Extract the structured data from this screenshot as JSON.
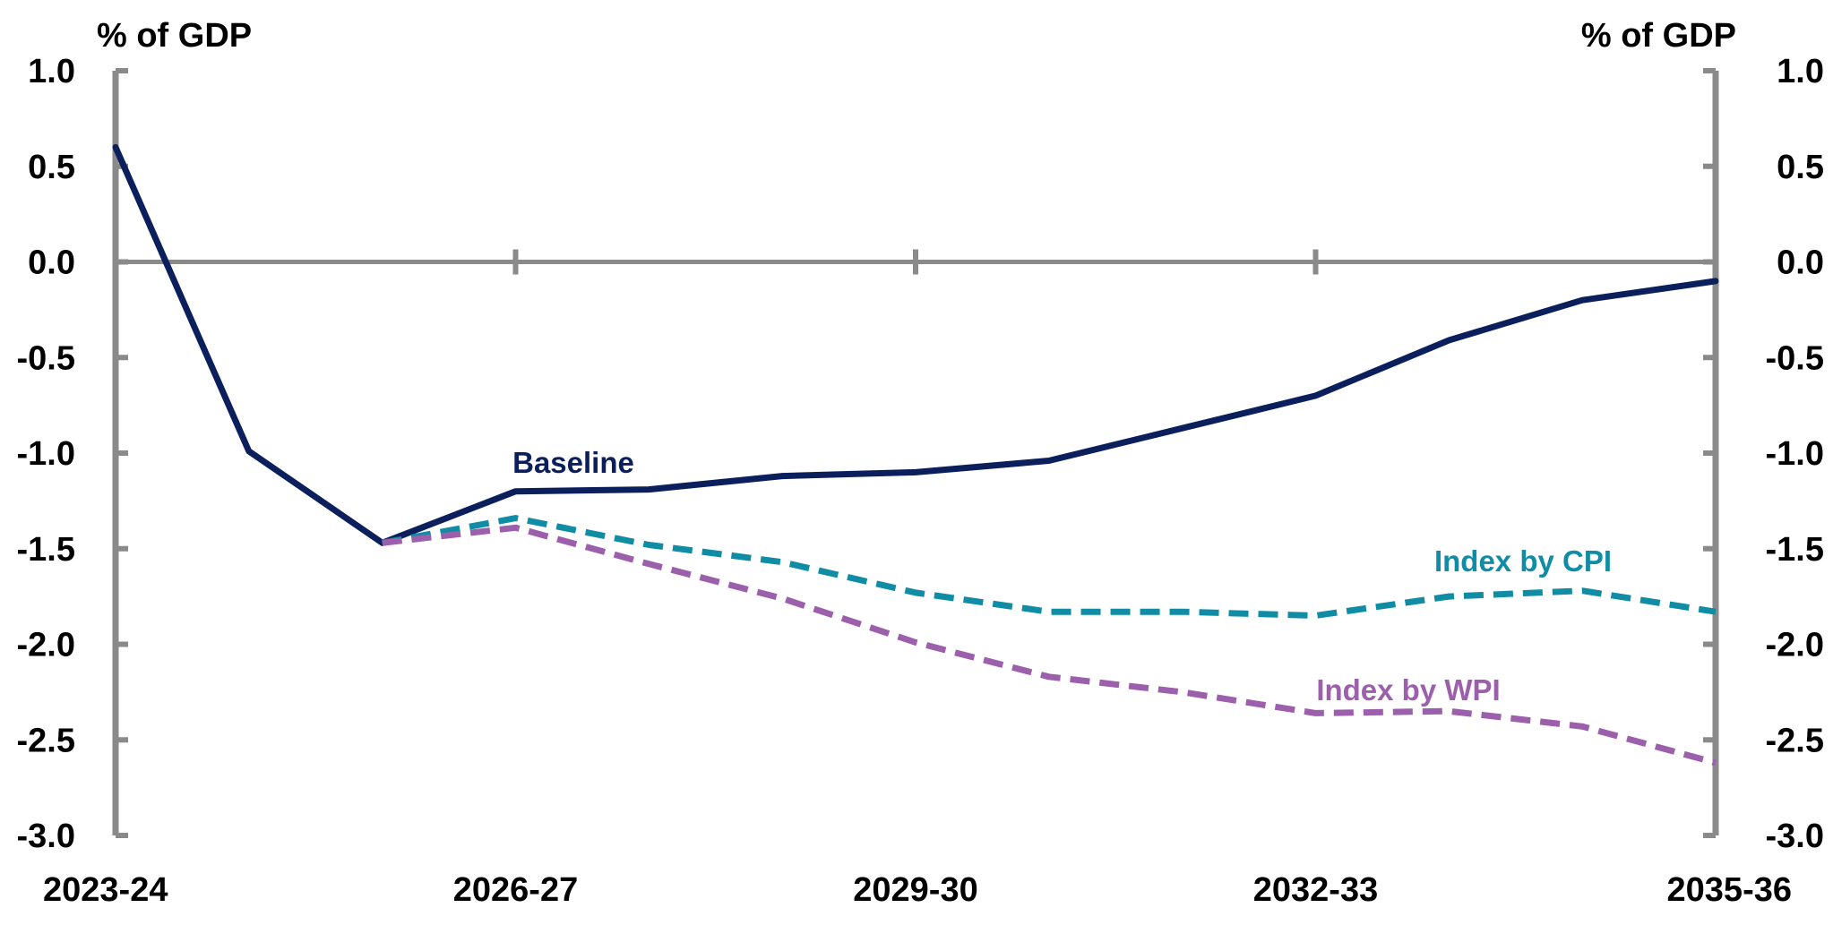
{
  "chart_data": {
    "type": "line",
    "title": "",
    "y_left_label": "% of GDP",
    "y_right_label": "% of GDP",
    "ylim": [
      -3.0,
      1.0
    ],
    "yticks": [
      1.0,
      0.5,
      0.0,
      -0.5,
      -1.0,
      -1.5,
      -2.0,
      -2.5,
      -3.0
    ],
    "ytick_labels": [
      "1.0",
      "0.5",
      "0.0",
      "-0.5",
      "-1.0",
      "-1.5",
      "-2.0",
      "-2.5",
      "-3.0"
    ],
    "x": [
      "2023-24",
      "2024-25",
      "2025-26",
      "2026-27",
      "2027-28",
      "2028-29",
      "2029-30",
      "2030-31",
      "2031-32",
      "2032-33",
      "2033-34",
      "2034-35",
      "2035-36"
    ],
    "xtick_labels": [
      "2023-24",
      "2026-27",
      "2029-30",
      "2032-33",
      "2035-36"
    ],
    "grid": false,
    "series": [
      {
        "name": "Baseline",
        "color": "#0b1f5c",
        "dash": "solid",
        "x": [
          "2023-24",
          "2024-25",
          "2025-26",
          "2026-27",
          "2027-28",
          "2028-29",
          "2029-30",
          "2030-31",
          "2031-32",
          "2032-33",
          "2033-34",
          "2034-35",
          "2035-36"
        ],
        "values": [
          0.6,
          -0.99,
          -1.47,
          -1.2,
          -1.19,
          -1.12,
          -1.1,
          -1.04,
          -0.87,
          -0.7,
          -0.41,
          -0.2,
          -0.1
        ]
      },
      {
        "name": "Index by CPI",
        "color": "#108ca5",
        "dash": "dashed",
        "x": [
          "2025-26",
          "2026-27",
          "2027-28",
          "2028-29",
          "2029-30",
          "2030-31",
          "2031-32",
          "2032-33",
          "2033-34",
          "2034-35",
          "2035-36"
        ],
        "values": [
          -1.47,
          -1.34,
          -1.48,
          -1.57,
          -1.73,
          -1.83,
          -1.83,
          -1.85,
          -1.75,
          -1.72,
          -1.83
        ]
      },
      {
        "name": "Index by WPI",
        "color": "#9b5fac",
        "dash": "dashed",
        "x": [
          "2025-26",
          "2026-27",
          "2027-28",
          "2028-29",
          "2029-30",
          "2030-31",
          "2031-32",
          "2032-33",
          "2033-34",
          "2034-35",
          "2035-36"
        ],
        "values": [
          -1.47,
          -1.39,
          -1.58,
          -1.76,
          -1.99,
          -2.17,
          -2.25,
          -2.36,
          -2.35,
          -2.43,
          -2.62
        ]
      }
    ],
    "annotations": [
      {
        "text": "Baseline",
        "series": "Baseline",
        "color": "#0b1f5c"
      },
      {
        "text": "Index by CPI",
        "series": "Index by CPI",
        "color": "#108ca5"
      },
      {
        "text": "Index by WPI",
        "series": "Index by WPI",
        "color": "#9b5fac"
      }
    ]
  }
}
